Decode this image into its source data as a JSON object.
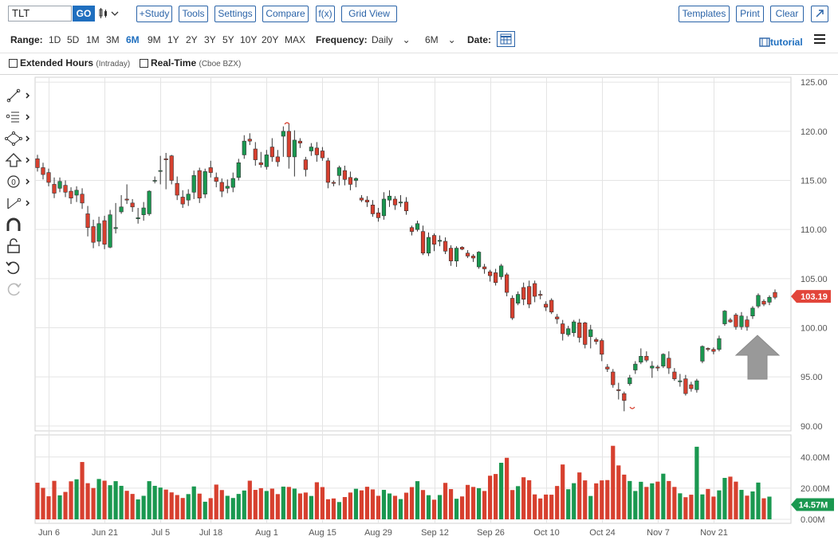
{
  "header": {
    "symbol": "TLT",
    "go_label": "GO",
    "chart_type_icon": "candlestick-icon",
    "buttons": {
      "study": "+Study",
      "tools": "Tools",
      "settings": "Settings",
      "compare": "Compare",
      "fx": "f(x)",
      "grid_view": "Grid View",
      "templates": "Templates",
      "print": "Print",
      "clear": "Clear"
    },
    "expand_icon": "expand-icon"
  },
  "range_bar": {
    "range_label": "Range:",
    "ranges": [
      "1D",
      "5D",
      "1M",
      "3M",
      "6M",
      "9M",
      "1Y",
      "2Y",
      "3Y",
      "5Y",
      "10Y",
      "20Y",
      "MAX"
    ],
    "active_range": "6M",
    "frequency_label": "Frequency:",
    "frequency_value": "Daily",
    "period_value": "6M",
    "date_label": "Date:",
    "tutorial_label": "tutorial"
  },
  "options": {
    "extended_hours": "Extended Hours",
    "extended_hours_note": "(Intraday)",
    "real_time": "Real-Time",
    "real_time_note": "(Cboe BZX)"
  },
  "tools": [
    "line-draw-icon",
    "fib-icon",
    "ellipse-icon",
    "arrow-up-icon",
    "zero-icon",
    "measure-icon",
    "magnet-icon",
    "unlock-icon",
    "undo-icon",
    "redo-icon"
  ],
  "colors": {
    "up": "#1a9850",
    "down": "#d7402f",
    "axis": "#555",
    "grid": "#e4e4e4",
    "last_price": "#e2453a",
    "last_volume": "#1a9850",
    "arrow": "#999999"
  },
  "chart_data": {
    "type": "candlestick",
    "x_labels": [
      "Jun 6",
      "Jun 21",
      "Jul 5",
      "Jul 18",
      "Aug 1",
      "Aug 15",
      "Aug 29",
      "Sep 12",
      "Sep 26",
      "Oct 10",
      "Oct 24",
      "Nov 7",
      "Nov 21"
    ],
    "y_ticks": [
      "125.00",
      "120.00",
      "115.00",
      "110.00",
      "105.00",
      "100.00",
      "95.00",
      "90.00"
    ],
    "ylim": [
      89.5,
      125.5
    ],
    "last_price": "103.19",
    "last_price_value": 103.19,
    "volume_ticks": [
      "40.00M",
      "20.00M",
      "0.00M"
    ],
    "volume_max": 45,
    "last_volume": "14.57M",
    "last_volume_value": 14.57,
    "candles": [
      [
        117.2,
        116.3,
        117.6,
        115.9
      ],
      [
        116.3,
        115.6,
        116.8,
        115.1
      ],
      [
        115.8,
        114.8,
        116.2,
        114.4
      ],
      [
        114.6,
        113.7,
        115.3,
        113.2
      ],
      [
        114.2,
        114.9,
        115.3,
        113.8
      ],
      [
        114.5,
        113.8,
        115.0,
        113.3
      ],
      [
        113.9,
        113.2,
        114.3,
        112.6
      ],
      [
        113.5,
        114.0,
        114.4,
        112.8
      ],
      [
        113.6,
        112.7,
        114.2,
        112.1
      ],
      [
        111.6,
        110.2,
        112.4,
        109.3
      ],
      [
        110.3,
        108.7,
        111.0,
        108.1
      ],
      [
        108.8,
        110.6,
        111.3,
        108.3
      ],
      [
        110.9,
        108.5,
        111.4,
        108.0
      ],
      [
        108.2,
        111.5,
        112.0,
        108.1
      ],
      [
        110.1,
        110.2,
        112.7,
        109.6
      ],
      [
        111.8,
        112.3,
        113.5,
        111.6
      ],
      [
        113.1,
        113.0,
        114.6,
        112.6
      ],
      [
        112.7,
        112.3,
        113.1,
        111.8
      ],
      [
        111.1,
        111.2,
        112.2,
        110.6
      ],
      [
        111.5,
        112.2,
        112.8,
        110.9
      ],
      [
        111.6,
        113.9,
        114.0,
        111.4
      ],
      [
        115.0,
        115.0,
        115.4,
        114.7
      ],
      [
        116.0,
        116.0,
        117.5,
        114.6
      ],
      [
        117.2,
        117.1,
        117.8,
        114.1
      ],
      [
        117.5,
        115.0,
        117.6,
        114.6
      ],
      [
        114.7,
        113.5,
        115.4,
        113.0
      ],
      [
        113.3,
        112.6,
        114.0,
        112.2
      ],
      [
        113.0,
        113.6,
        114.1,
        112.4
      ],
      [
        113.8,
        115.5,
        116.0,
        113.1
      ],
      [
        116.0,
        113.2,
        116.3,
        112.7
      ],
      [
        113.6,
        115.9,
        116.2,
        113.2
      ],
      [
        116.3,
        115.8,
        117.0,
        115.3
      ],
      [
        115.3,
        114.9,
        115.8,
        114.3
      ],
      [
        114.8,
        113.9,
        115.2,
        113.3
      ],
      [
        114.2,
        114.4,
        115.1,
        113.7
      ],
      [
        114.3,
        115.2,
        115.8,
        113.8
      ],
      [
        115.3,
        116.8,
        117.2,
        115.0
      ],
      [
        117.6,
        119.0,
        119.6,
        117.2
      ],
      [
        119.2,
        119.0,
        119.8,
        118.6
      ],
      [
        118.2,
        117.1,
        118.9,
        116.5
      ],
      [
        116.8,
        116.6,
        117.9,
        116.3
      ],
      [
        116.4,
        117.6,
        118.1,
        116.1
      ],
      [
        118.4,
        117.4,
        119.3,
        116.9
      ],
      [
        117.4,
        116.9,
        118.1,
        116.4
      ],
      [
        119.5,
        120.0,
        120.5,
        117.4
      ],
      [
        120.0,
        117.4,
        120.8,
        116.2
      ],
      [
        117.4,
        119.1,
        120.1,
        115.4
      ],
      [
        119.0,
        118.8,
        119.3,
        118.3
      ],
      [
        117.1,
        116.1,
        117.4,
        115.4
      ],
      [
        118.0,
        118.4,
        118.8,
        117.5
      ],
      [
        118.3,
        117.6,
        118.9,
        116.9
      ],
      [
        118.0,
        117.3,
        118.4,
        117.0
      ],
      [
        117.0,
        114.8,
        117.3,
        114.2
      ],
      [
        114.8,
        114.7,
        115.0,
        114.4
      ],
      [
        115.5,
        116.3,
        116.5,
        114.5
      ],
      [
        116.0,
        115.1,
        116.5,
        114.5
      ],
      [
        115.3,
        114.6,
        115.9,
        114.0
      ],
      [
        115.0,
        115.2,
        115.3,
        114.3
      ],
      [
        113.2,
        113.0,
        113.5,
        112.8
      ],
      [
        113.0,
        112.8,
        113.4,
        112.3
      ],
      [
        112.5,
        111.6,
        113.0,
        111.3
      ],
      [
        111.7,
        111.2,
        112.2,
        110.8
      ],
      [
        111.4,
        113.1,
        113.8,
        111.0
      ],
      [
        113.0,
        113.4,
        114.0,
        112.3
      ],
      [
        113.1,
        112.5,
        113.4,
        112.0
      ],
      [
        112.7,
        112.8,
        113.5,
        112.3
      ],
      [
        112.8,
        111.9,
        113.3,
        111.5
      ],
      [
        110.2,
        109.8,
        110.4,
        109.4
      ],
      [
        110.0,
        110.6,
        110.9,
        109.8
      ],
      [
        109.8,
        107.6,
        110.4,
        107.4
      ],
      [
        107.6,
        109.2,
        109.7,
        107.3
      ],
      [
        109.4,
        108.5,
        109.6,
        107.8
      ],
      [
        108.8,
        108.9,
        109.4,
        108.3
      ],
      [
        108.8,
        107.8,
        109.2,
        107.5
      ],
      [
        108.1,
        106.8,
        108.4,
        106.3
      ],
      [
        106.8,
        108.1,
        108.3,
        106.2
      ],
      [
        108.2,
        108.0,
        108.3,
        107.9
      ],
      [
        107.6,
        107.3,
        107.9,
        107.1
      ],
      [
        107.3,
        107.1,
        107.5,
        106.7
      ],
      [
        106.2,
        107.7,
        107.8,
        106.0
      ],
      [
        106.2,
        106.0,
        106.5,
        105.5
      ],
      [
        105.7,
        105.3,
        105.9,
        104.7
      ],
      [
        105.6,
        104.6,
        106.0,
        104.3
      ],
      [
        105.2,
        106.3,
        106.5,
        104.9
      ],
      [
        105.4,
        103.6,
        105.6,
        103.2
      ],
      [
        103.0,
        101.0,
        103.3,
        100.8
      ],
      [
        102.5,
        103.4,
        103.7,
        102.3
      ],
      [
        104.1,
        102.9,
        104.6,
        102.3
      ],
      [
        104.2,
        102.4,
        104.8,
        102.0
      ],
      [
        104.5,
        103.2,
        104.8,
        102.6
      ],
      [
        103.4,
        103.3,
        103.8,
        102.9
      ],
      [
        102.4,
        102.1,
        102.7,
        101.7
      ],
      [
        102.8,
        101.6,
        103.0,
        101.4
      ],
      [
        101.1,
        100.9,
        101.4,
        100.4
      ],
      [
        100.4,
        99.4,
        100.8,
        98.7
      ],
      [
        99.3,
        99.9,
        100.2,
        99.1
      ],
      [
        99.5,
        100.6,
        100.8,
        99.1
      ],
      [
        100.5,
        99.0,
        100.9,
        98.5
      ],
      [
        100.5,
        98.3,
        100.6,
        97.9
      ],
      [
        99.1,
        99.8,
        100.3,
        97.9
      ],
      [
        98.8,
        98.6,
        99.0,
        98.3
      ],
      [
        98.7,
        97.3,
        98.9,
        96.6
      ],
      [
        96.0,
        95.8,
        96.3,
        95.5
      ],
      [
        95.5,
        94.2,
        95.8,
        93.9
      ],
      [
        93.7,
        93.6,
        94.4,
        92.7
      ],
      [
        93.3,
        92.6,
        93.5,
        91.5
      ],
      [
        94.3,
        94.9,
        95.2,
        94.1
      ],
      [
        95.7,
        96.3,
        96.6,
        95.3
      ],
      [
        96.5,
        97.1,
        97.9,
        96.3
      ],
      [
        97.1,
        96.7,
        97.6,
        96.5
      ],
      [
        95.9,
        96.1,
        96.6,
        94.9
      ],
      [
        96.0,
        95.9,
        96.2,
        95.6
      ],
      [
        96.1,
        97.3,
        97.4,
        95.9
      ],
      [
        96.9,
        95.9,
        97.6,
        95.3
      ],
      [
        95.5,
        94.8,
        95.9,
        94.6
      ],
      [
        94.5,
        94.6,
        95.3,
        94.0
      ],
      [
        94.8,
        93.3,
        95.2,
        93.1
      ],
      [
        94.2,
        93.8,
        94.5,
        93.5
      ],
      [
        93.7,
        94.6,
        94.8,
        93.4
      ],
      [
        96.6,
        98.1,
        98.2,
        96.4
      ],
      [
        97.9,
        97.8,
        98.0,
        97.6
      ],
      [
        97.8,
        97.6,
        98.0,
        97.3
      ],
      [
        97.8,
        98.9,
        99.2,
        97.6
      ],
      [
        100.4,
        101.7,
        101.8,
        100.2
      ],
      [
        100.8,
        100.6,
        101.0,
        100.5
      ],
      [
        101.3,
        100.1,
        101.5,
        99.8
      ],
      [
        100.1,
        101.2,
        101.6,
        99.8
      ],
      [
        100.8,
        100.1,
        101.2,
        99.7
      ],
      [
        101.2,
        102.0,
        102.2,
        100.9
      ],
      [
        102.2,
        103.3,
        103.5,
        102.0
      ],
      [
        102.7,
        102.4,
        102.9,
        102.2
      ],
      [
        102.6,
        103.1,
        103.3,
        102.3
      ],
      [
        103.6,
        103.1,
        103.9,
        102.9
      ]
    ],
    "volumes": [
      23.5,
      20.2,
      14.8,
      24.7,
      15.4,
      17.6,
      24.4,
      25.7,
      36.8,
      23.2,
      20.1,
      25.9,
      24.8,
      21.9,
      24.5,
      21.5,
      18.3,
      16.3,
      12.8,
      15.1,
      24.5,
      21.5,
      20.4,
      19.1,
      17.3,
      15.6,
      13.7,
      16.2,
      21.1,
      16.5,
      11.3,
      13.6,
      22.3,
      18.8,
      15.1,
      13.7,
      16.3,
      18.5,
      24.8,
      18.9,
      20.0,
      18.2,
      19.7,
      16.2,
      21.0,
      20.8,
      19.7,
      16.6,
      17.2,
      15.0,
      23.8,
      20.7,
      12.9,
      13.4,
      11.1,
      14.3,
      17.2,
      19.6,
      18.6,
      20.9,
      19.2,
      15.1,
      18.9,
      16.6,
      15.1,
      13.0,
      17.1,
      20.7,
      24.5,
      18.8,
      15.5,
      12.6,
      15.6,
      23.4,
      19.4,
      13.2,
      14.7,
      22.1,
      20.8,
      20.0,
      18.2,
      28.0,
      29.1,
      36.3,
      39.5,
      18.8,
      21.3,
      27.0,
      25.1,
      16.0,
      13.4,
      15.9,
      15.8,
      21.4,
      35.2,
      19.3,
      23.2,
      30.1,
      25.0,
      15.0,
      23.1,
      25.0,
      25.2,
      47.2,
      34.6,
      28.7,
      24.6,
      18.2,
      24.1,
      20.8,
      23.1,
      24.2,
      29.3,
      24.6,
      20.8,
      16.7,
      14.2,
      15.8,
      46.6,
      16.0,
      19.5,
      14.6,
      18.6,
      26.6,
      27.4,
      24.2,
      18.9,
      15.2,
      17.9,
      23.6,
      13.5,
      14.57
    ]
  }
}
